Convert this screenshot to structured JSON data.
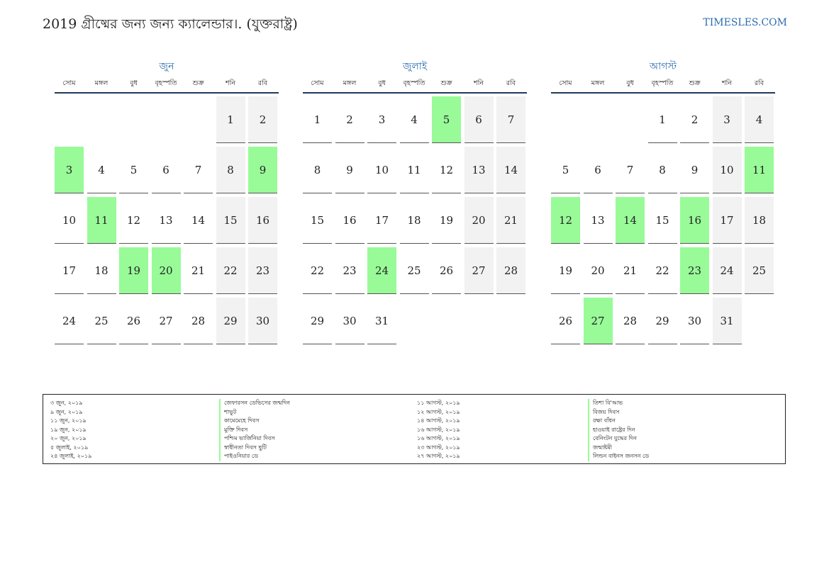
{
  "header": {
    "title": "2019 গ্রীষ্মের জন্য জন্য ক্যালেন্ডার।. (যুক্তরাষ্ট্র)",
    "site": "TIMESLES.COM"
  },
  "weekdays": [
    "সোম",
    "মঙ্গল",
    "বুধ",
    "বৃহস্পতি",
    "শুক্র",
    "শনি",
    "রবি"
  ],
  "colors": {
    "holiday": "#98fb98",
    "weekend": "#f2f2f2",
    "accent": "#2b6cb0"
  },
  "months": [
    {
      "name": "জুন",
      "offset": 5,
      "days": 30,
      "holidays": [
        3,
        9,
        11,
        19,
        20
      ]
    },
    {
      "name": "জুলাই",
      "offset": 0,
      "days": 31,
      "holidays": [
        5,
        24
      ]
    },
    {
      "name": "আগস্ট",
      "offset": 3,
      "days": 31,
      "holidays": [
        11,
        12,
        14,
        16,
        23,
        27
      ]
    }
  ],
  "legend": {
    "left": [
      {
        "date": "৩ জুন, ২০১৯",
        "name": "জেফারসন ডেভিসের জন্মদিন"
      },
      {
        "date": "৯ জুন, ২০১৯",
        "name": "শাভুট"
      },
      {
        "date": "১১ জুন, ২০১৯",
        "name": "কামেমেহে দিবস"
      },
      {
        "date": "১৯ জুন, ২০১৯",
        "name": "মুক্তি দিবস"
      },
      {
        "date": "২০ জুন, ২০১৯",
        "name": "পশ্চিম ভার্জিনিয়া দিবস"
      },
      {
        "date": "৫ জুলাই, ২০১৯",
        "name": "স্বাধীনতা দিবস ছুটি"
      },
      {
        "date": "২৪ জুলাই, ২০১৯",
        "name": "পাইওনিয়ার ডে"
      }
    ],
    "right": [
      {
        "date": "১১ আগস্ট, ২০১৯",
        "name": "তিশা বি'আভ"
      },
      {
        "date": "১২ আগস্ট, ২০১৯",
        "name": "বিজয় দিবস"
      },
      {
        "date": "১৪ আগস্ট, ২০১৯",
        "name": "রক্ষা বাঁধন"
      },
      {
        "date": "১৬ আগস্ট, ২০১৯",
        "name": "হাওয়াই রাষ্ট্রের দিন"
      },
      {
        "date": "১৬ আগস্ট, ২০১৯",
        "name": "বেনিংটন যুদ্ধের দিন"
      },
      {
        "date": "২৩ আগস্ট, ২০১৯",
        "name": "জন্মাষ্টমী"
      },
      {
        "date": "২৭ আগস্ট, ২০১৯",
        "name": "লিন্ডন বাইনস জনসন ডে"
      }
    ]
  }
}
